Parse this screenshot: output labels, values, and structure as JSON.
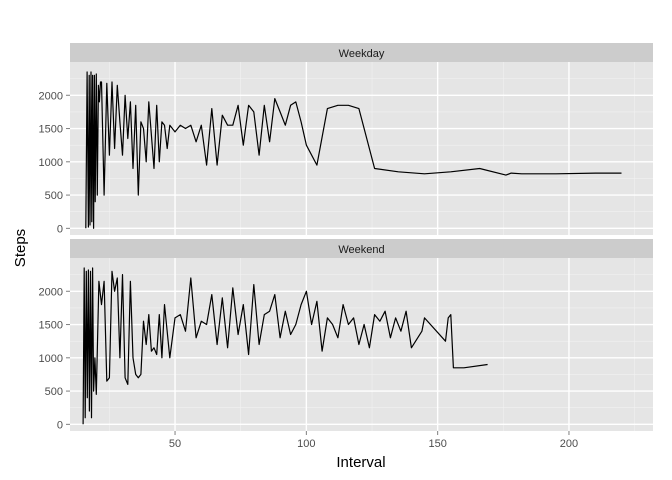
{
  "chart_data": {
    "type": "line",
    "xlabel": "Interval",
    "ylabel": "Steps",
    "xlim": [
      10,
      232
    ],
    "ylim": [
      -100,
      2500
    ],
    "x_ticks": [
      50,
      100,
      150,
      200
    ],
    "y_ticks": [
      0,
      500,
      1000,
      1500,
      2000
    ],
    "grid": true,
    "colors": {
      "panel_bg": "#e5e5e5",
      "strip_bg": "#cccccc",
      "grid": "#ffffff",
      "line": "#000000",
      "tick_text": "#4d4d4d"
    },
    "facets": [
      {
        "label": "Weekday",
        "series": [
          {
            "x": [
              16,
              16.5,
              17,
              17.3,
              17.6,
              18,
              18.3,
              18.6,
              19,
              19.3,
              19.6,
              20,
              20.4,
              20.8,
              21.2,
              21.6,
              22,
              23,
              24,
              25,
              26,
              27,
              28,
              29,
              30,
              31,
              32,
              33,
              34,
              35,
              36,
              37,
              38,
              39,
              40,
              41,
              42,
              43,
              44,
              45,
              46,
              47,
              48,
              50,
              52,
              54,
              56,
              58,
              60,
              62,
              64,
              66,
              68,
              70,
              72,
              74,
              76,
              78,
              80,
              82,
              84,
              86,
              88,
              90,
              92,
              94,
              96,
              98,
              100,
              104,
              108,
              112,
              116,
              120,
              126,
              135,
              145,
              155,
              166,
              176,
              178,
              182,
              195,
              210,
              220
            ],
            "y": [
              0,
              2350,
              20,
              2300,
              50,
              2350,
              100,
              2300,
              0,
              2300,
              400,
              2320,
              500,
              2150,
              1900,
              2200,
              2200,
              500,
              2180,
              1100,
              2200,
              1200,
              2150,
              1600,
              1100,
              2000,
              1350,
              1900,
              900,
              1850,
              500,
              1600,
              1500,
              1000,
              1900,
              1400,
              900,
              1850,
              1000,
              1600,
              1550,
              1200,
              1550,
              1450,
              1550,
              1500,
              1550,
              1300,
              1550,
              950,
              1800,
              950,
              1700,
              1550,
              1550,
              1850,
              1250,
              1850,
              1750,
              1100,
              1850,
              1300,
              1950,
              1750,
              1550,
              1850,
              1900,
              1600,
              1250,
              950,
              1800,
              1850,
              1850,
              1800,
              900,
              850,
              820,
              850,
              900,
              800,
              830,
              820,
              820,
              830,
              830
            ]
          }
        ]
      },
      {
        "label": "Weekend",
        "series": [
          {
            "x": [
              15,
              15.4,
              15.8,
              16.2,
              16.6,
              17,
              17.4,
              17.8,
              18.2,
              18.6,
              19,
              19.5,
              20,
              21,
              22,
              23,
              24,
              25,
              26,
              27,
              28,
              29,
              30,
              31,
              32,
              33,
              34,
              35,
              36,
              37,
              38,
              39,
              40,
              41,
              42,
              43,
              44,
              45,
              46,
              48,
              50,
              52,
              54,
              56,
              58,
              60,
              62,
              64,
              66,
              68,
              70,
              72,
              74,
              76,
              78,
              80,
              82,
              84,
              86,
              88,
              90,
              92,
              94,
              96,
              98,
              100,
              102,
              104,
              106,
              108,
              110,
              112,
              114,
              116,
              118,
              120,
              122,
              124,
              126,
              128,
              130,
              132,
              134,
              136,
              138,
              140,
              144,
              145,
              153,
              154,
              155,
              156,
              160,
              169
            ],
            "y": [
              0,
              2350,
              100,
              2300,
              400,
              2320,
              200,
              2300,
              100,
              2350,
              500,
              1000,
              450,
              2150,
              1800,
              2150,
              650,
              700,
              2300,
              2000,
              2200,
              1000,
              2250,
              700,
              600,
              2150,
              1000,
              750,
              700,
              750,
              1550,
              1200,
              1650,
              1100,
              1150,
              1050,
              1650,
              1000,
              1800,
              1000,
              1600,
              1650,
              1400,
              2200,
              1300,
              1550,
              1500,
              1950,
              1200,
              1900,
              1150,
              2050,
              1350,
              1800,
              1050,
              2100,
              1200,
              1650,
              1700,
              1950,
              1300,
              1700,
              1350,
              1500,
              1800,
              2000,
              1500,
              1850,
              1100,
              1600,
              1500,
              1300,
              1800,
              1500,
              1600,
              1200,
              1500,
              1150,
              1650,
              1550,
              1700,
              1300,
              1600,
              1400,
              1700,
              1150,
              1400,
              1600,
              1250,
              1600,
              1650,
              850,
              850,
              900
            ]
          }
        ]
      }
    ]
  }
}
